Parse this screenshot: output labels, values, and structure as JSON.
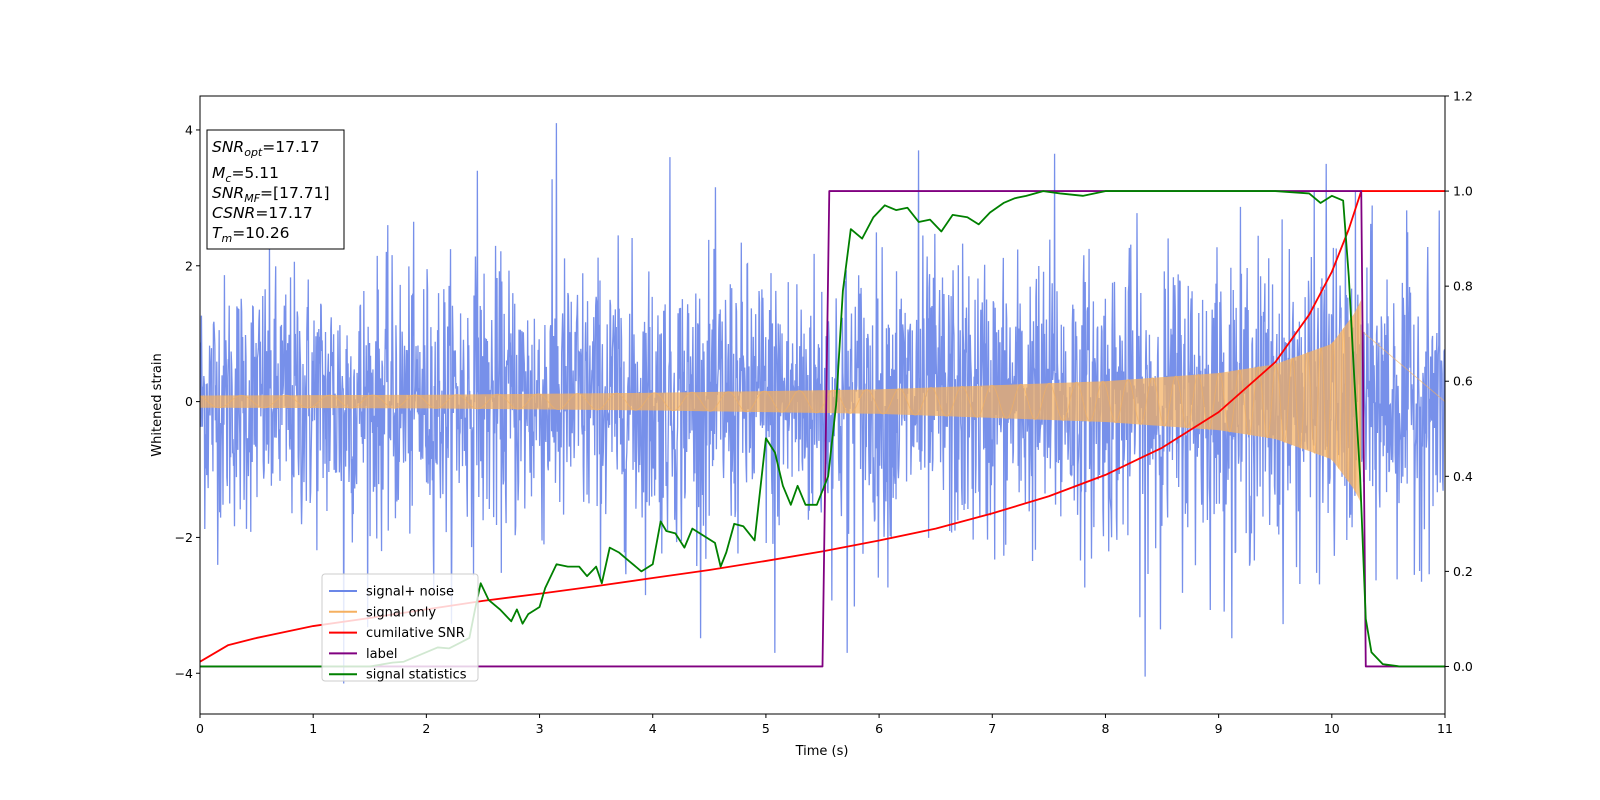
{
  "chart_data": {
    "type": "line",
    "xlabel": "Time (s)",
    "ylabel": "Whitened strain",
    "xlim": [
      0,
      11
    ],
    "ylim_left": [
      -4.6,
      4.5
    ],
    "ylim_right": [
      -0.1,
      1.2
    ],
    "x_ticks": [
      "0",
      "1",
      "2",
      "3",
      "4",
      "5",
      "6",
      "7",
      "8",
      "9",
      "10",
      "11"
    ],
    "y_left_ticks": [
      "−4",
      "−2",
      "0",
      "2",
      "4"
    ],
    "y_right_ticks": [
      "0.0",
      "0.2",
      "0.4",
      "0.6",
      "0.8",
      "1.0",
      "1.2"
    ],
    "grid": false,
    "legend_position": "lower-left",
    "info_box": {
      "position": "upper-left",
      "lines": [
        {
          "sym": "SNR",
          "sub": "opt",
          "value": "=17.17"
        },
        {
          "sym": "M",
          "sub": "c",
          "value": "=5.11"
        },
        {
          "sym": "SNR",
          "sub": "MF",
          "value": "=[17.71]"
        },
        {
          "sym": "CSNR",
          "sub": "",
          "value": "=17.17"
        },
        {
          "sym": "T",
          "sub": "m",
          "value": "=10.26"
        }
      ]
    },
    "series": [
      {
        "name": "signal+ noise",
        "color": "#6b87e8",
        "axis": "left",
        "kind": "noise",
        "noise_std": 1.0,
        "approx_range": [
          -4.1,
          4.1
        ],
        "envelope_points": [
          [
            0,
            2.0
          ],
          [
            1,
            2.1
          ],
          [
            2,
            2.1
          ],
          [
            3,
            2.2
          ],
          [
            4,
            2.2
          ],
          [
            5,
            2.2
          ],
          [
            6,
            2.3
          ],
          [
            7,
            2.3
          ],
          [
            8,
            2.3
          ],
          [
            9,
            2.4
          ],
          [
            10,
            2.5
          ],
          [
            10.26,
            2.5
          ],
          [
            11,
            2.1
          ]
        ],
        "spikes": [
          [
            3.15,
            4.1
          ],
          [
            1.27,
            -4.15
          ],
          [
            8.35,
            -4.05
          ],
          [
            6.35,
            3.7
          ],
          [
            7.55,
            3.65
          ],
          [
            4.15,
            3.6
          ],
          [
            9.95,
            3.5
          ],
          [
            5.08,
            -3.7
          ],
          [
            5.72,
            -3.7
          ],
          [
            2.45,
            3.4
          ]
        ]
      },
      {
        "name": "signal only",
        "color": "#f5b060",
        "axis": "left",
        "kind": "chirp",
        "merger_time": 10.26,
        "amplitude_points": [
          [
            0,
            0.09
          ],
          [
            2,
            0.1
          ],
          [
            4,
            0.13
          ],
          [
            6,
            0.18
          ],
          [
            8,
            0.3
          ],
          [
            9,
            0.42
          ],
          [
            9.5,
            0.55
          ],
          [
            10,
            0.85
          ],
          [
            10.2,
            1.3
          ],
          [
            10.26,
            1.5
          ]
        ]
      },
      {
        "name": "cumilative SNR",
        "color": "#ff0000",
        "axis": "right",
        "points": [
          [
            0,
            0.01
          ],
          [
            0.25,
            0.045
          ],
          [
            0.5,
            0.06
          ],
          [
            1,
            0.085
          ],
          [
            1.5,
            0.102
          ],
          [
            2,
            0.12
          ],
          [
            2.5,
            0.138
          ],
          [
            3,
            0.153
          ],
          [
            3.5,
            0.169
          ],
          [
            4,
            0.186
          ],
          [
            4.5,
            0.203
          ],
          [
            5,
            0.222
          ],
          [
            5.5,
            0.242
          ],
          [
            6,
            0.265
          ],
          [
            6.5,
            0.29
          ],
          [
            7,
            0.322
          ],
          [
            7.5,
            0.358
          ],
          [
            8,
            0.403
          ],
          [
            8.5,
            0.46
          ],
          [
            9,
            0.535
          ],
          [
            9.5,
            0.64
          ],
          [
            9.8,
            0.74
          ],
          [
            10,
            0.83
          ],
          [
            10.15,
            0.92
          ],
          [
            10.26,
            1.0
          ],
          [
            11,
            1.0
          ]
        ]
      },
      {
        "name": "label",
        "color": "#800080",
        "axis": "right",
        "points": [
          [
            0,
            0.0
          ],
          [
            5.5,
            0.0
          ],
          [
            5.56,
            1.0
          ],
          [
            10.26,
            1.0
          ],
          [
            10.3,
            0.0
          ],
          [
            11,
            0.0
          ]
        ]
      },
      {
        "name": "signal statistics",
        "color": "#008000",
        "axis": "right",
        "points": [
          [
            0,
            0.0
          ],
          [
            1,
            0.0
          ],
          [
            1.5,
            0.0
          ],
          [
            1.7,
            0.008
          ],
          [
            1.8,
            0.01
          ],
          [
            1.9,
            0.02
          ],
          [
            2.0,
            0.03
          ],
          [
            2.1,
            0.04
          ],
          [
            2.2,
            0.038
          ],
          [
            2.3,
            0.05
          ],
          [
            2.38,
            0.06
          ],
          [
            2.43,
            0.12
          ],
          [
            2.48,
            0.175
          ],
          [
            2.55,
            0.14
          ],
          [
            2.65,
            0.12
          ],
          [
            2.75,
            0.095
          ],
          [
            2.8,
            0.12
          ],
          [
            2.85,
            0.09
          ],
          [
            2.9,
            0.11
          ],
          [
            3.0,
            0.125
          ],
          [
            3.05,
            0.165
          ],
          [
            3.15,
            0.215
          ],
          [
            3.25,
            0.21
          ],
          [
            3.35,
            0.21
          ],
          [
            3.42,
            0.19
          ],
          [
            3.5,
            0.21
          ],
          [
            3.55,
            0.175
          ],
          [
            3.62,
            0.25
          ],
          [
            3.7,
            0.24
          ],
          [
            3.8,
            0.22
          ],
          [
            3.9,
            0.2
          ],
          [
            4.0,
            0.215
          ],
          [
            4.07,
            0.305
          ],
          [
            4.12,
            0.285
          ],
          [
            4.2,
            0.28
          ],
          [
            4.28,
            0.25
          ],
          [
            4.35,
            0.29
          ],
          [
            4.45,
            0.275
          ],
          [
            4.55,
            0.26
          ],
          [
            4.6,
            0.21
          ],
          [
            4.65,
            0.24
          ],
          [
            4.72,
            0.3
          ],
          [
            4.8,
            0.295
          ],
          [
            4.9,
            0.265
          ],
          [
            5.0,
            0.48
          ],
          [
            5.08,
            0.45
          ],
          [
            5.15,
            0.38
          ],
          [
            5.22,
            0.34
          ],
          [
            5.28,
            0.38
          ],
          [
            5.35,
            0.34
          ],
          [
            5.45,
            0.34
          ],
          [
            5.55,
            0.4
          ],
          [
            5.62,
            0.55
          ],
          [
            5.68,
            0.79
          ],
          [
            5.75,
            0.92
          ],
          [
            5.85,
            0.9
          ],
          [
            5.95,
            0.945
          ],
          [
            6.05,
            0.97
          ],
          [
            6.15,
            0.96
          ],
          [
            6.25,
            0.965
          ],
          [
            6.35,
            0.935
          ],
          [
            6.45,
            0.94
          ],
          [
            6.55,
            0.915
          ],
          [
            6.65,
            0.95
          ],
          [
            6.78,
            0.945
          ],
          [
            6.88,
            0.93
          ],
          [
            6.98,
            0.955
          ],
          [
            7.1,
            0.975
          ],
          [
            7.2,
            0.985
          ],
          [
            7.3,
            0.99
          ],
          [
            7.45,
            1.0
          ],
          [
            7.6,
            0.995
          ],
          [
            7.8,
            0.99
          ],
          [
            8.0,
            1.0
          ],
          [
            8.3,
            1.0
          ],
          [
            8.6,
            1.0
          ],
          [
            9.0,
            1.0
          ],
          [
            9.5,
            1.0
          ],
          [
            9.8,
            0.995
          ],
          [
            9.9,
            0.975
          ],
          [
            10.0,
            0.99
          ],
          [
            10.1,
            0.98
          ],
          [
            10.15,
            0.82
          ],
          [
            10.2,
            0.6
          ],
          [
            10.25,
            0.4
          ],
          [
            10.3,
            0.1
          ],
          [
            10.35,
            0.03
          ],
          [
            10.45,
            0.005
          ],
          [
            10.6,
            0.0
          ],
          [
            11,
            0.0
          ]
        ]
      }
    ]
  }
}
